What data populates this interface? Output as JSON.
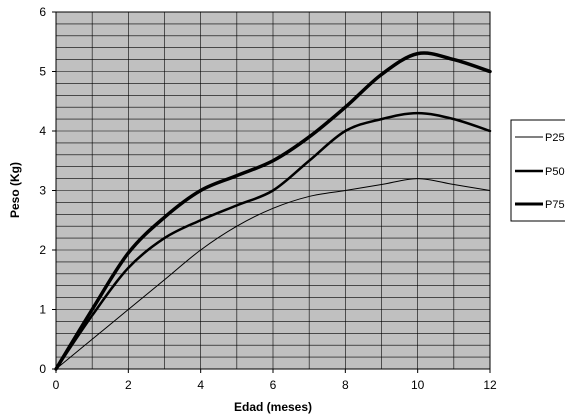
{
  "chart_data": {
    "type": "line",
    "title": "",
    "xlabel": "Edad (meses)",
    "ylabel": "Peso (Kg)",
    "xlim": [
      0,
      12
    ],
    "ylim": [
      0,
      6
    ],
    "x_ticks": [
      "0",
      "2",
      "4",
      "6",
      "8",
      "10",
      "12"
    ],
    "y_ticks": [
      "0",
      "1",
      "2",
      "3",
      "4",
      "5",
      "6"
    ],
    "grid": true,
    "plot_background": "#c0c0c0",
    "legend_position": "right",
    "series": [
      {
        "name": "P25",
        "line": "thin",
        "color": "#000000",
        "x": [
          0,
          1,
          2,
          3,
          4,
          5,
          6,
          7,
          8,
          9,
          10,
          11,
          12
        ],
        "y": [
          0,
          0.5,
          1.0,
          1.5,
          2.0,
          2.4,
          2.7,
          2.9,
          3.0,
          3.1,
          3.2,
          3.1,
          3.0
        ]
      },
      {
        "name": "P50",
        "line": "medium",
        "color": "#000000",
        "x": [
          0,
          1,
          2,
          3,
          4,
          5,
          6,
          7,
          8,
          9,
          10,
          11,
          12
        ],
        "y": [
          0,
          0.9,
          1.7,
          2.2,
          2.5,
          2.75,
          3.0,
          3.5,
          4.0,
          4.2,
          4.3,
          4.2,
          4.0
        ]
      },
      {
        "name": "P75",
        "line": "thick",
        "color": "#000000",
        "x": [
          0,
          1,
          2,
          3,
          4,
          5,
          6,
          7,
          8,
          9,
          10,
          11,
          12
        ],
        "y": [
          0,
          1.0,
          1.95,
          2.55,
          3.0,
          3.25,
          3.5,
          3.9,
          4.4,
          4.95,
          5.3,
          5.2,
          5.0
        ]
      }
    ]
  }
}
